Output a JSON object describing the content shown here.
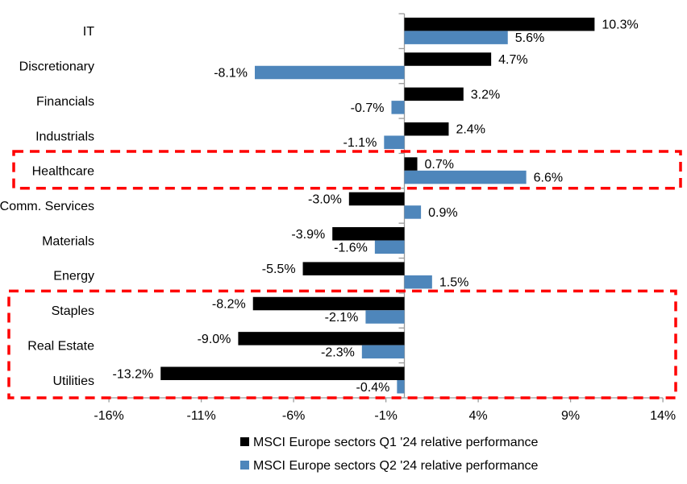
{
  "chart_data": {
    "type": "bar",
    "orientation": "horizontal",
    "title": "",
    "xlabel": "",
    "ylabel": "",
    "xlim": [
      -16,
      14
    ],
    "grid": false,
    "legend_position": "bottom",
    "axis_color": "#9A9A9A",
    "highlight_color": "#FF0000",
    "categories": [
      "IT",
      "Discretionary",
      "Financials",
      "Industrials",
      "Healthcare",
      "Comm. Services",
      "Materials",
      "Energy",
      "Staples",
      "Real Estate",
      "Utilities"
    ],
    "series": [
      {
        "name": "MSCI Europe sectors Q1 '24 relative performance",
        "color": "#000000",
        "values": [
          10.3,
          4.7,
          3.2,
          2.4,
          0.7,
          -3.0,
          -3.9,
          -5.5,
          -8.2,
          -9.0,
          -13.2
        ],
        "labels": [
          "10.3%",
          "4.7%",
          "3.2%",
          "2.4%",
          "0.7%",
          "-3.0%",
          "-3.9%",
          "-5.5%",
          "-8.2%",
          "-9.0%",
          "-13.2%"
        ]
      },
      {
        "name": "MSCI Europe sectors Q2 '24 relative performance",
        "color": "#4E86BB",
        "values": [
          5.6,
          -8.1,
          -0.7,
          -1.1,
          6.6,
          0.9,
          -1.6,
          1.5,
          -2.1,
          -2.3,
          -0.4
        ],
        "labels": [
          "5.6%",
          "-8.1%",
          "-0.7%",
          "-1.1%",
          "6.6%",
          "0.9%",
          "-1.6%",
          "1.5%",
          "-2.1%",
          "-2.3%",
          "-0.4%"
        ]
      }
    ],
    "x_ticks": [
      {
        "value": -16,
        "label": "-16%"
      },
      {
        "value": -11,
        "label": "-11%"
      },
      {
        "value": -6,
        "label": "-6%"
      },
      {
        "value": -1,
        "label": "-1%"
      },
      {
        "value": 4,
        "label": "4%"
      },
      {
        "value": 9,
        "label": "9%"
      },
      {
        "value": 14,
        "label": "14%"
      }
    ],
    "highlight_boxes": [
      {
        "name": "healthcare-highlight",
        "from": "Healthcare",
        "to": "Healthcare"
      },
      {
        "name": "defensive-sectors-highlight",
        "from": "Staples",
        "to": "Utilities"
      }
    ]
  }
}
